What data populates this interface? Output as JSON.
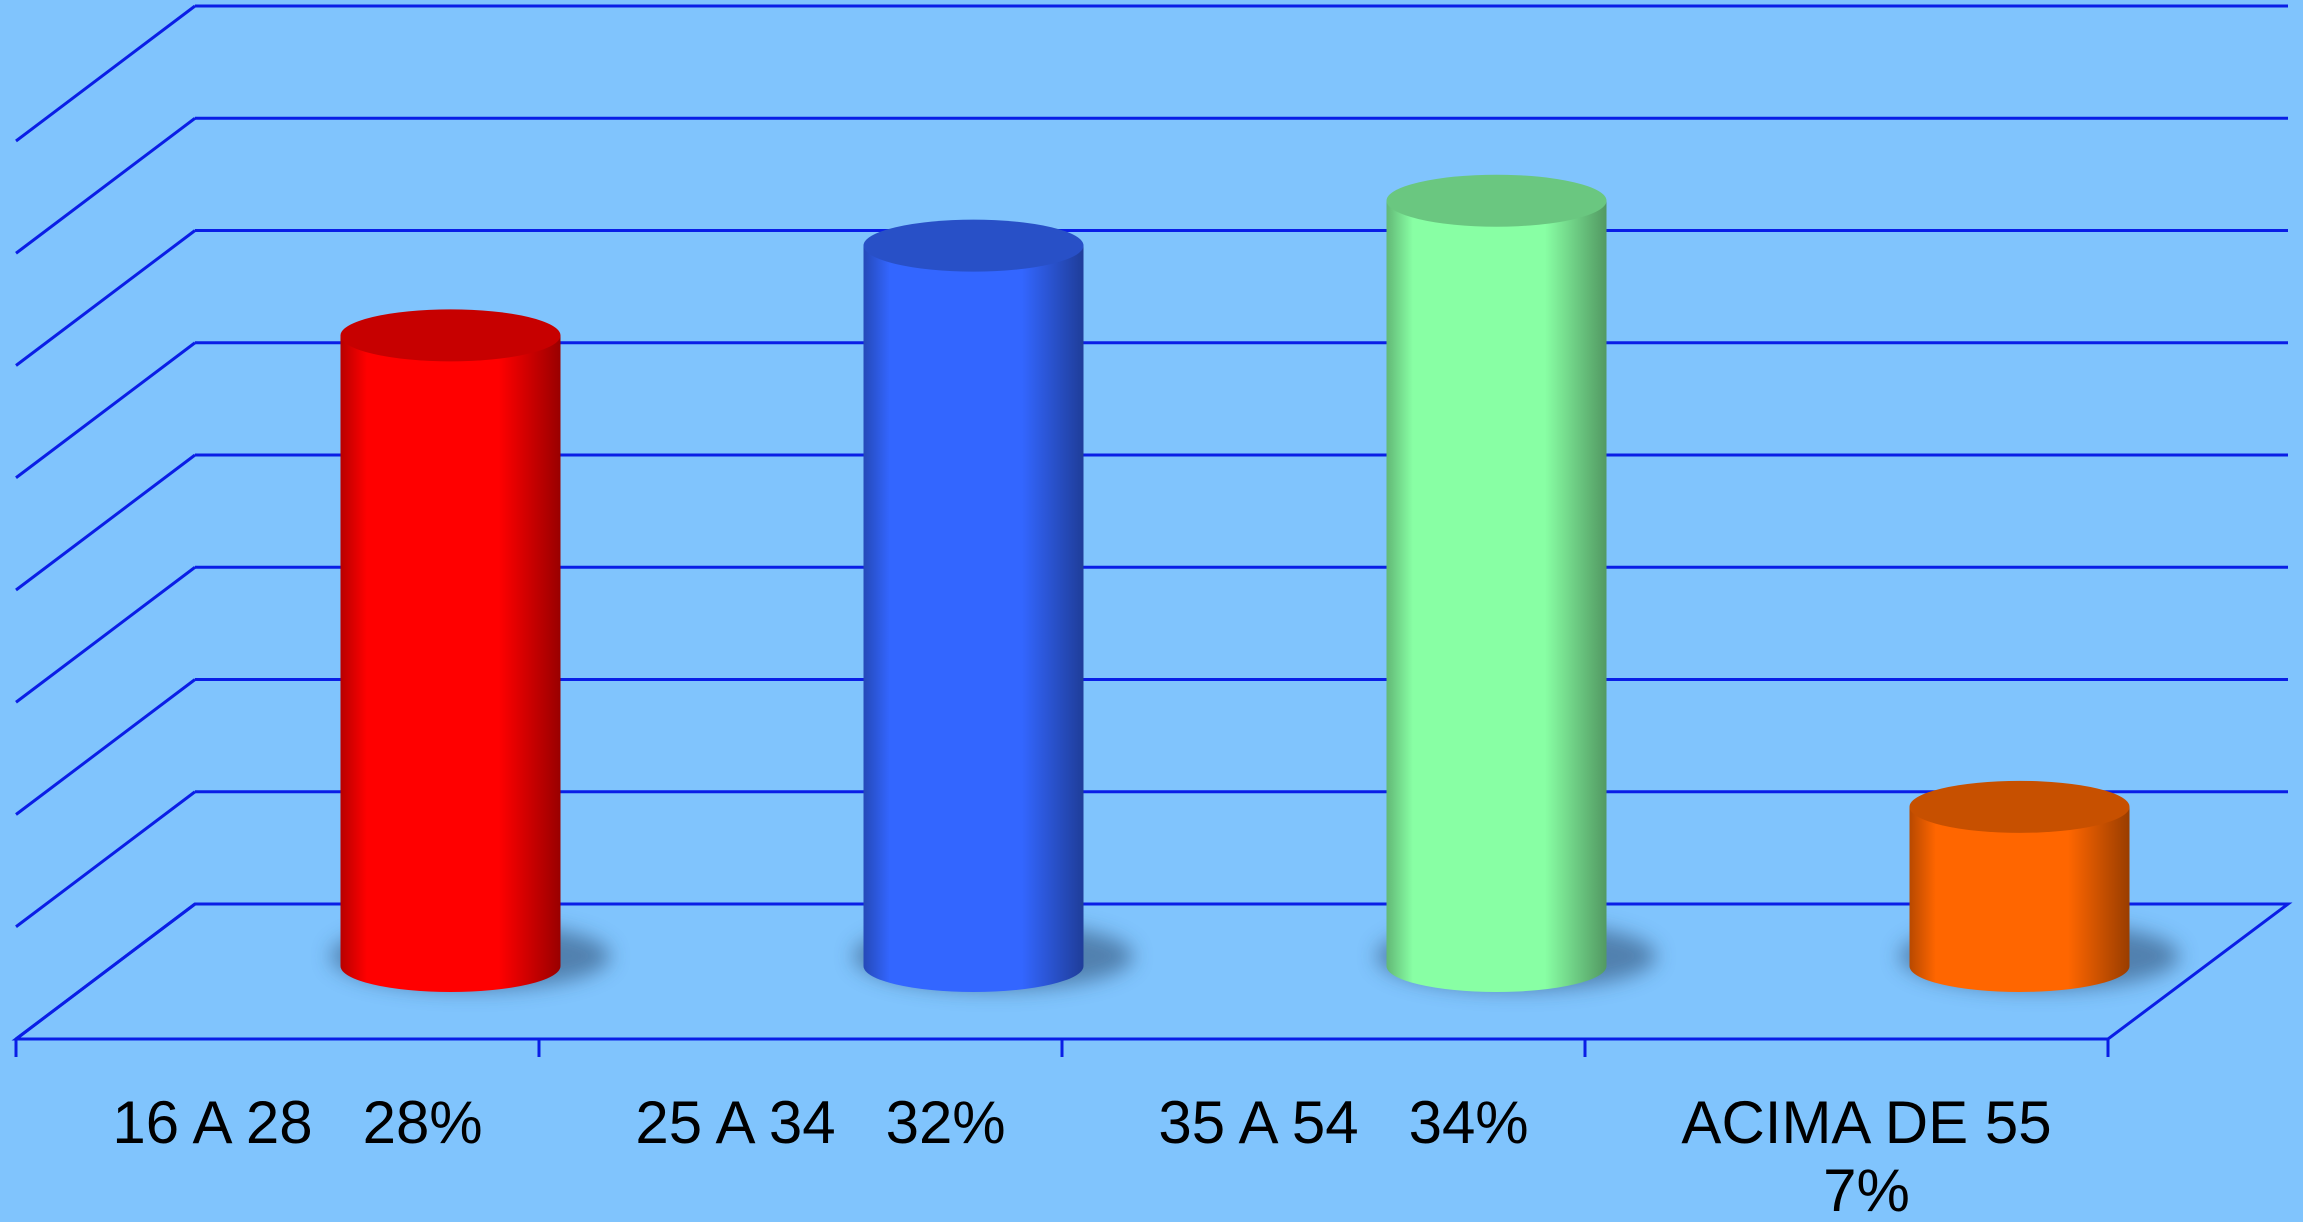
{
  "chart_data": {
    "type": "bar",
    "title": "",
    "xlabel": "",
    "ylabel": "",
    "ylim": [
      0,
      40
    ],
    "grid": true,
    "style": "3d-cylinder",
    "categories": [
      "16 A 28   28%",
      "25 A 34   32%",
      "35 A 54   34%",
      "ACIMA DE 55 7%"
    ],
    "category_label_lines": [
      [
        "16 A 28   28%"
      ],
      [
        "25 A 34   32%"
      ],
      [
        "35 A 54   34%"
      ],
      [
        "ACIMA DE 55",
        "7%"
      ]
    ],
    "values": [
      28,
      32,
      34,
      7
    ],
    "unit": "%",
    "colors": {
      "background": "#80c4fd",
      "grid_lines": "#0a1ee6",
      "bars": [
        "#ff0000",
        "#3366ff",
        "#88ffa4",
        "#ff6600"
      ]
    }
  }
}
